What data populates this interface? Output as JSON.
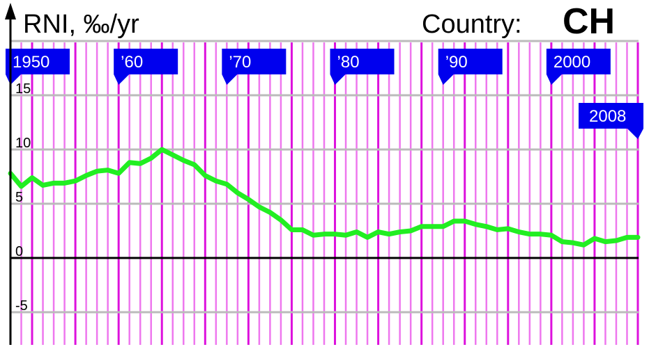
{
  "chart_data": {
    "type": "line",
    "title": "RNI, ‰/yr",
    "country_label": "Country:",
    "country": "CH",
    "xlim": [
      1950,
      2008
    ],
    "ylim": [
      -8,
      20
    ],
    "yticks": [
      15,
      10,
      5,
      0,
      -5
    ],
    "grid": true,
    "decade_flags": [
      {
        "year": 1950,
        "label": "1950"
      },
      {
        "year": 1960,
        "label": "’60"
      },
      {
        "year": 1970,
        "label": "’70"
      },
      {
        "year": 1980,
        "label": "’80"
      },
      {
        "year": 1990,
        "label": "’90"
      },
      {
        "year": 2000,
        "label": "2000"
      }
    ],
    "end_flag": {
      "year": 2008,
      "label": "2008"
    },
    "colors": {
      "line": "#22ee22",
      "flag": "#0000ee",
      "minor_grid": "#ee77ee",
      "major_grid": "#dd11dd",
      "hgrid": "#bbbbbb"
    },
    "series": [
      {
        "x": [
          1950,
          1951,
          1952,
          1953,
          1954,
          1955,
          1956,
          1957,
          1958,
          1959,
          1960,
          1961,
          1962,
          1963,
          1964,
          1965,
          1966,
          1967,
          1968,
          1969,
          1970,
          1971,
          1972,
          1973,
          1974,
          1975,
          1976,
          1977,
          1978,
          1979,
          1980,
          1981,
          1982,
          1983,
          1984,
          1985,
          1986,
          1987,
          1988,
          1989,
          1990,
          1991,
          1992,
          1993,
          1994,
          1995,
          1996,
          1997,
          1998,
          1999,
          2000,
          2001,
          2002,
          2003,
          2004,
          2005,
          2006,
          2007,
          2008
        ],
        "y": [
          7.8,
          6.6,
          7.4,
          6.7,
          6.9,
          6.9,
          7.1,
          7.6,
          8.0,
          8.1,
          7.8,
          8.8,
          8.7,
          9.2,
          10.0,
          9.5,
          9.0,
          8.6,
          7.6,
          7.1,
          6.8,
          6.0,
          5.4,
          4.7,
          4.2,
          3.5,
          2.6,
          2.6,
          2.1,
          2.2,
          2.2,
          2.1,
          2.4,
          1.9,
          2.4,
          2.2,
          2.4,
          2.5,
          2.9,
          2.9,
          2.9,
          3.4,
          3.4,
          3.1,
          2.9,
          2.6,
          2.7,
          2.4,
          2.2,
          2.2,
          2.1,
          1.5,
          1.4,
          1.2,
          1.8,
          1.5,
          1.6,
          1.9,
          1.9
        ]
      }
    ]
  }
}
